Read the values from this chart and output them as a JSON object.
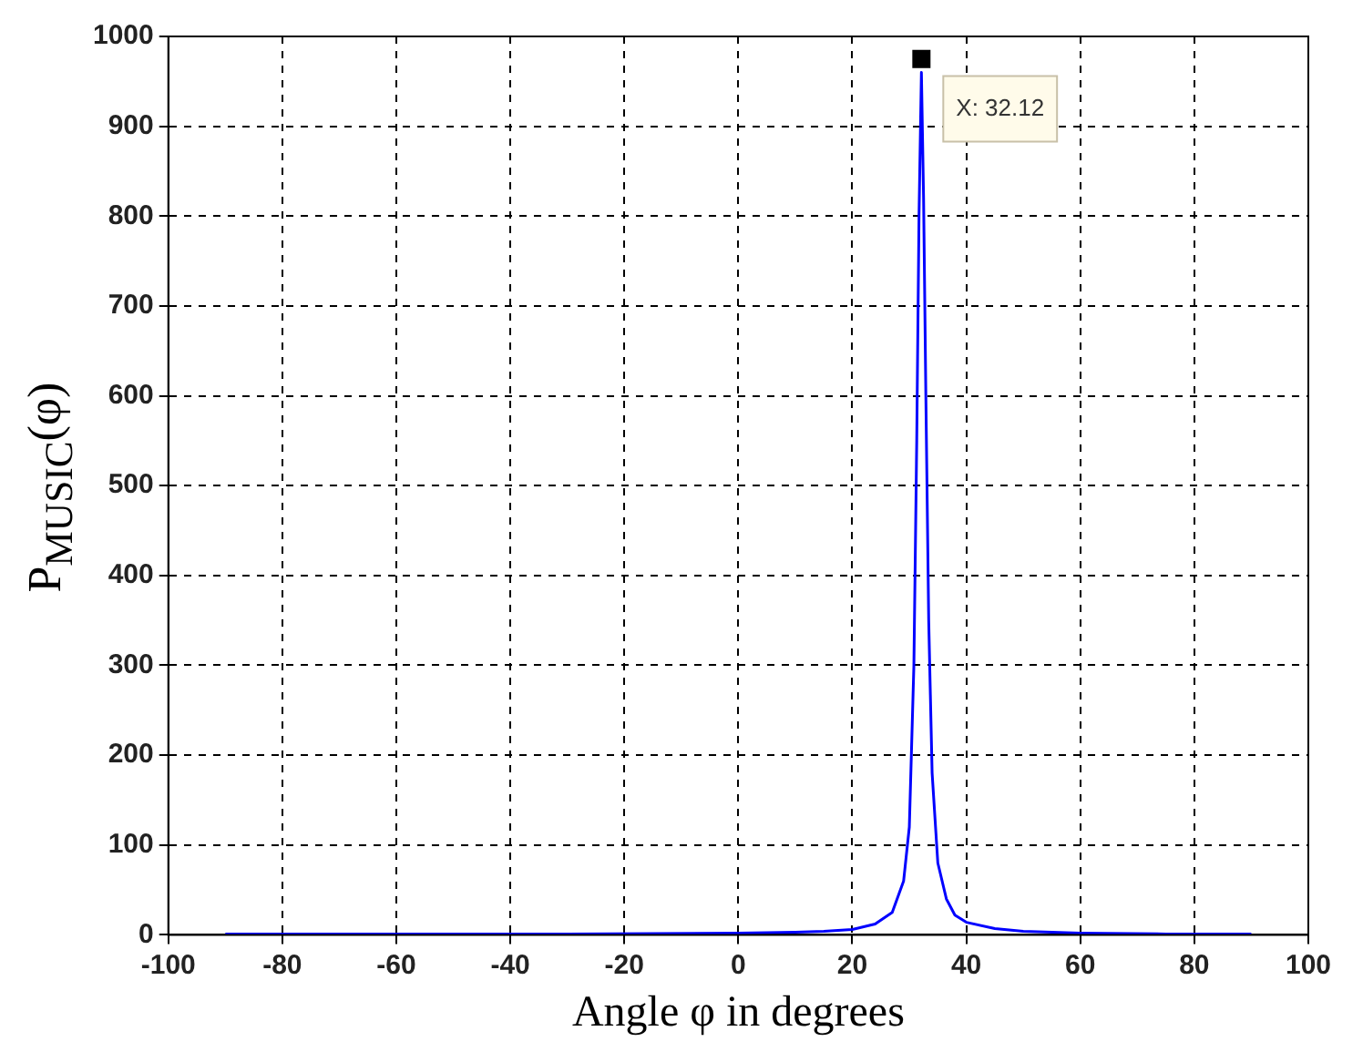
{
  "chart_data": {
    "type": "line",
    "xlabel": "Angle φ in degrees",
    "ylabel": "P$_{MUSIC}$(φ)",
    "xlim": [
      -100,
      100
    ],
    "xticks": [
      -100,
      -80,
      -60,
      -40,
      -20,
      0,
      20,
      40,
      60,
      80,
      100
    ],
    "ylim": [
      0,
      1000
    ],
    "yticks": [
      0,
      100,
      200,
      300,
      400,
      500,
      600,
      700,
      800,
      900,
      1000
    ],
    "grid": true,
    "legend": false,
    "marker": "none",
    "line_style": "solid",
    "series": [
      {
        "color": "#0000ff",
        "x": [
          -90,
          -60,
          -30,
          0,
          10,
          15,
          20,
          24,
          27,
          29,
          30,
          30.8,
          31.3,
          31.7,
          32.12,
          32.5,
          32.9,
          33.4,
          34,
          35,
          36.5,
          38,
          40,
          45,
          50,
          60,
          75,
          90
        ],
        "values": [
          1,
          1,
          1,
          2,
          3,
          4,
          6,
          12,
          25,
          60,
          120,
          300,
          550,
          800,
          960,
          820,
          600,
          350,
          180,
          80,
          40,
          22,
          14,
          7,
          4,
          2,
          1,
          1
        ]
      },
      {
        "type": "scatter",
        "color": "#000000",
        "marker": "square",
        "x": [
          32.12
        ],
        "values": [
          975
        ]
      }
    ],
    "annotations": [
      {
        "text": "X: 32.12",
        "x": 32.12,
        "y": 960
      }
    ]
  }
}
